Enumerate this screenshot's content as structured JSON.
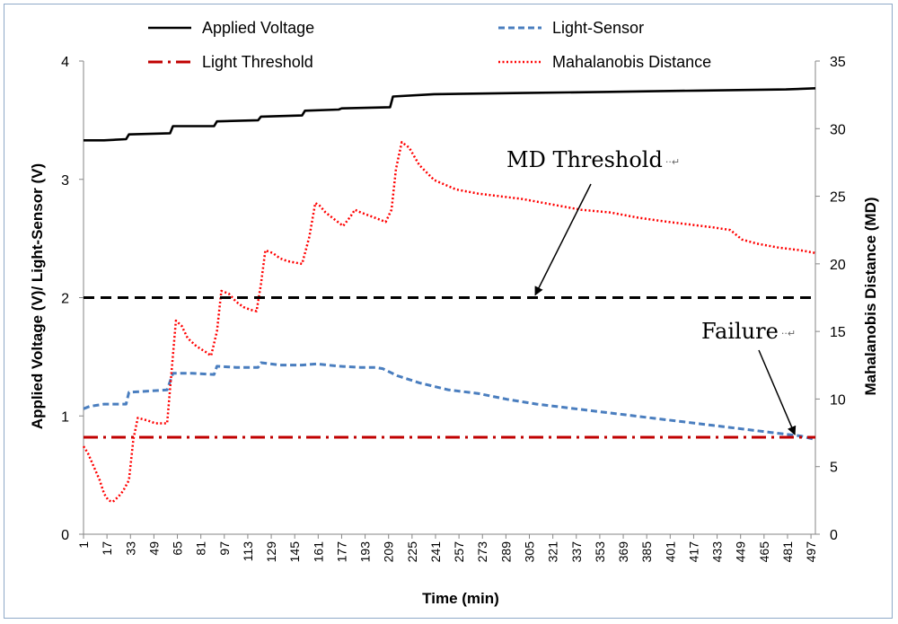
{
  "chart_data": {
    "type": "line",
    "xlabel": "Time (min)",
    "ylabel": "Applied Voltage (V)/ Light-Sensor (V)",
    "y2label": "Mahalanobis Distance (MD)",
    "ylim": [
      0,
      4
    ],
    "y2lim": [
      0,
      35
    ],
    "xlim": [
      1,
      500
    ],
    "yticks": [
      0,
      1,
      2,
      3,
      4
    ],
    "y2ticks": [
      0,
      5,
      10,
      15,
      20,
      25,
      30,
      35
    ],
    "xticks": [
      1,
      17,
      33,
      49,
      65,
      81,
      97,
      113,
      129,
      145,
      161,
      177,
      193,
      209,
      225,
      241,
      257,
      273,
      289,
      305,
      321,
      337,
      353,
      369,
      385,
      401,
      417,
      433,
      449,
      465,
      481,
      497
    ],
    "legend_position": "top",
    "series": [
      {
        "name": "Applied Voltage",
        "axis": "left",
        "color": "#000000",
        "style": "solid",
        "x": [
          1,
          15,
          30,
          32,
          60,
          62,
          90,
          92,
          120,
          122,
          150,
          152,
          175,
          177,
          210,
          212,
          240,
          300,
          360,
          420,
          480,
          500
        ],
        "y": [
          3.33,
          3.33,
          3.34,
          3.38,
          3.39,
          3.45,
          3.45,
          3.49,
          3.5,
          3.53,
          3.54,
          3.58,
          3.59,
          3.6,
          3.61,
          3.7,
          3.72,
          3.73,
          3.74,
          3.75,
          3.76,
          3.77
        ]
      },
      {
        "name": "Light-Sensor",
        "axis": "left",
        "color": "#4a7ebf",
        "style": "dashed",
        "x": [
          1,
          5,
          10,
          15,
          25,
          30,
          32,
          45,
          58,
          62,
          75,
          90,
          92,
          105,
          120,
          122,
          135,
          150,
          160,
          175,
          190,
          200,
          205,
          215,
          230,
          250,
          270,
          290,
          310,
          330,
          350,
          370,
          390,
          410,
          430,
          450,
          470,
          490,
          500
        ],
        "y": [
          1.06,
          1.08,
          1.09,
          1.1,
          1.1,
          1.1,
          1.2,
          1.21,
          1.22,
          1.36,
          1.36,
          1.35,
          1.42,
          1.41,
          1.41,
          1.45,
          1.43,
          1.43,
          1.44,
          1.42,
          1.41,
          1.41,
          1.4,
          1.34,
          1.28,
          1.22,
          1.19,
          1.14,
          1.1,
          1.07,
          1.04,
          1.01,
          0.98,
          0.95,
          0.92,
          0.89,
          0.86,
          0.83,
          0.8
        ]
      },
      {
        "name": "Light Threshold",
        "axis": "left",
        "color": "#c00000",
        "style": "dash-dot",
        "x": [
          1,
          500
        ],
        "y": [
          0.82,
          0.82
        ]
      },
      {
        "name": "Mahalanobis Distance",
        "axis": "right",
        "color": "#ff0000",
        "style": "dotted",
        "x": [
          1,
          4,
          8,
          12,
          15,
          18,
          21,
          25,
          28,
          32,
          35,
          38,
          45,
          50,
          58,
          61,
          64,
          68,
          72,
          78,
          84,
          88,
          92,
          95,
          100,
          105,
          110,
          115,
          119,
          122,
          125,
          130,
          135,
          140,
          145,
          150,
          155,
          159,
          162,
          166,
          172,
          178,
          183,
          186,
          190,
          195,
          200,
          207,
          211,
          214,
          218,
          223,
          230,
          240,
          255,
          270,
          285,
          300,
          320,
          340,
          360,
          380,
          400,
          415,
          430,
          442,
          450,
          460,
          475,
          490,
          500
        ],
        "y": [
          6.5,
          6.0,
          5.0,
          4.0,
          3.0,
          2.5,
          2.4,
          2.8,
          3.2,
          4.0,
          7.0,
          8.6,
          8.4,
          8.2,
          8.2,
          12.0,
          15.8,
          15.4,
          14.5,
          13.9,
          13.5,
          13.2,
          15.0,
          18.0,
          17.8,
          17.2,
          16.8,
          16.6,
          16.5,
          18.5,
          21.0,
          20.8,
          20.4,
          20.2,
          20.1,
          20.0,
          22.0,
          24.5,
          24.3,
          23.8,
          23.3,
          22.8,
          23.5,
          24.0,
          23.8,
          23.6,
          23.4,
          23.1,
          24.0,
          27.0,
          29.0,
          28.6,
          27.3,
          26.2,
          25.5,
          25.2,
          25.0,
          24.8,
          24.4,
          24.0,
          23.8,
          23.4,
          23.1,
          22.9,
          22.7,
          22.5,
          21.8,
          21.5,
          21.2,
          21.0,
          20.8
        ]
      },
      {
        "name": "MD Threshold",
        "axis": "left",
        "color": "#000000",
        "style": "dashed-heavy",
        "x": [
          1,
          500
        ],
        "y": [
          2.0,
          2.0
        ]
      }
    ],
    "legend": [
      "Applied Voltage",
      "Light-Sensor",
      "Light Threshold",
      "Mahalanobis Distance"
    ],
    "annotations": [
      {
        "text": "MD Threshold",
        "marker": "··↵",
        "target": {
          "x": 309,
          "y": 2.0,
          "axis": "left"
        }
      },
      {
        "text": "Failure",
        "marker": "··↵",
        "target": {
          "x": 486,
          "y": 0.82,
          "axis": "left"
        }
      }
    ]
  }
}
